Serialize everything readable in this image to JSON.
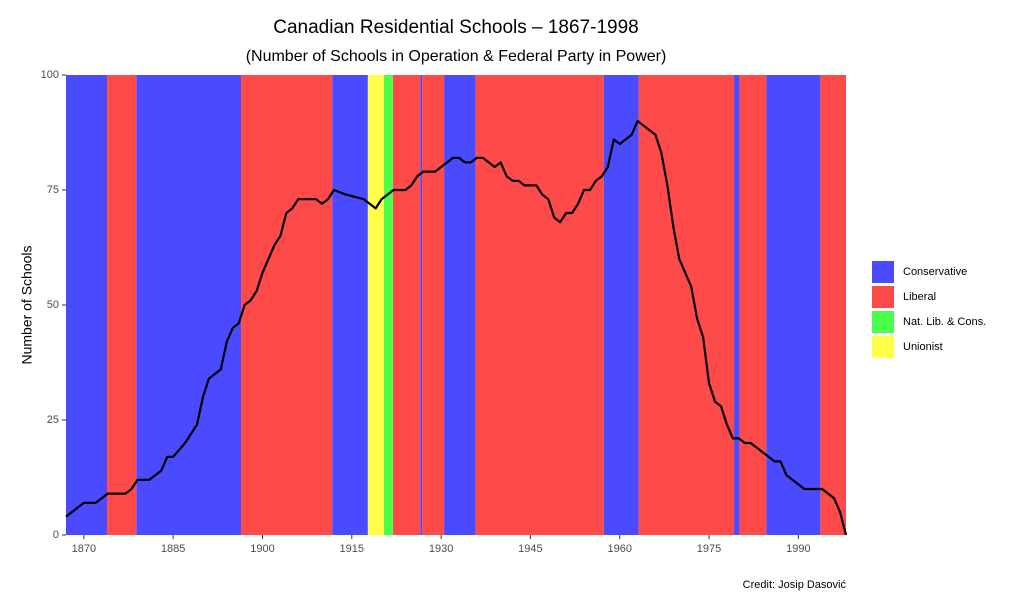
{
  "chart_data": {
    "type": "line",
    "title": "Canadian Residential Schools – 1867-1998",
    "subtitle": "(Number of Schools in Operation & Federal Party in Power)",
    "y_label": "Number of Schools",
    "credit": "Credit: Josip Dasović",
    "xlim": [
      1867,
      1998
    ],
    "xticks": [
      1870,
      1885,
      1900,
      1915,
      1930,
      1945,
      1960,
      1975,
      1990
    ],
    "ylim": [
      0,
      100
    ],
    "yticks": [
      0,
      25,
      50,
      75,
      100
    ],
    "line_color": "#000000",
    "series": [
      {
        "name": "Conservative",
        "color": "#4a4aff",
        "spans": [
          [
            1867,
            1873.9
          ],
          [
            1878.8,
            1896.4
          ],
          [
            1911.7,
            1917.7
          ],
          [
            1926.5,
            1926.8
          ],
          [
            1930.5,
            1935.8
          ],
          [
            1957.3,
            1963.2
          ],
          [
            1979.2,
            1980.1
          ],
          [
            1984.6,
            1993.7
          ]
        ]
      },
      {
        "name": "Liberal",
        "color": "#ff4a4a",
        "spans": [
          [
            1873.9,
            1878.8
          ],
          [
            1896.4,
            1911.7
          ],
          [
            1921.9,
            1926.5
          ],
          [
            1926.8,
            1930.5
          ],
          [
            1935.8,
            1957.3
          ],
          [
            1963.2,
            1979.2
          ],
          [
            1980.1,
            1984.6
          ],
          [
            1993.7,
            1998
          ]
        ]
      },
      {
        "name": "Nat. Lib. & Cons.",
        "color": "#4aff4a",
        "spans": [
          [
            1920.4,
            1921.9
          ]
        ]
      },
      {
        "name": "Unionist",
        "color": "#ffff4a",
        "spans": [
          [
            1917.7,
            1920.4
          ]
        ]
      }
    ],
    "x": [
      1867,
      1869,
      1870,
      1872,
      1873,
      1874,
      1877,
      1878,
      1879,
      1881,
      1883,
      1884,
      1885,
      1887,
      1889,
      1890,
      1891,
      1892,
      1893,
      1894,
      1895,
      1896,
      1897,
      1898,
      1899,
      1900,
      1901,
      1902,
      1903,
      1904,
      1905,
      1906,
      1909,
      1910,
      1911,
      1912,
      1914,
      1917,
      1918,
      1919,
      1920,
      1921,
      1922,
      1924,
      1925,
      1926,
      1927,
      1929,
      1930,
      1932,
      1933,
      1934,
      1935,
      1936,
      1937,
      1938,
      1939,
      1940,
      1941,
      1942,
      1943,
      1944,
      1946,
      1947,
      1948,
      1949,
      1950,
      1951,
      1952,
      1953,
      1954,
      1955,
      1956,
      1957,
      1958,
      1959,
      1960,
      1961,
      1962,
      1963,
      1964,
      1965,
      1966,
      1967,
      1968,
      1969,
      1970,
      1971,
      1972,
      1973,
      1974,
      1975,
      1976,
      1977,
      1978,
      1979,
      1980,
      1981,
      1982,
      1983,
      1984,
      1985,
      1986,
      1987,
      1988,
      1989,
      1990,
      1991,
      1992,
      1993,
      1994,
      1995,
      1996,
      1997,
      1998
    ],
    "values": [
      4,
      6,
      7,
      7,
      8,
      9,
      9,
      10,
      12,
      12,
      14,
      17,
      17,
      20,
      24,
      30,
      34,
      35,
      36,
      42,
      45,
      46,
      50,
      51,
      53,
      57,
      60,
      63,
      65,
      70,
      71,
      73,
      73,
      72,
      73,
      75,
      74,
      73,
      72,
      71,
      73,
      74,
      75,
      75,
      76,
      78,
      79,
      79,
      80,
      82,
      82,
      81,
      81,
      82,
      82,
      81,
      80,
      81,
      78,
      77,
      77,
      76,
      76,
      74,
      73,
      69,
      68,
      70,
      70,
      72,
      75,
      75,
      77,
      78,
      80,
      86,
      85,
      86,
      87,
      90,
      89,
      88,
      87,
      83,
      76,
      67,
      60,
      57,
      54,
      47,
      43,
      33,
      29,
      28,
      24,
      21,
      21,
      20,
      20,
      19,
      18,
      17,
      16,
      16,
      13,
      12,
      11,
      10,
      10,
      10,
      10,
      9,
      8,
      5,
      0
    ]
  }
}
